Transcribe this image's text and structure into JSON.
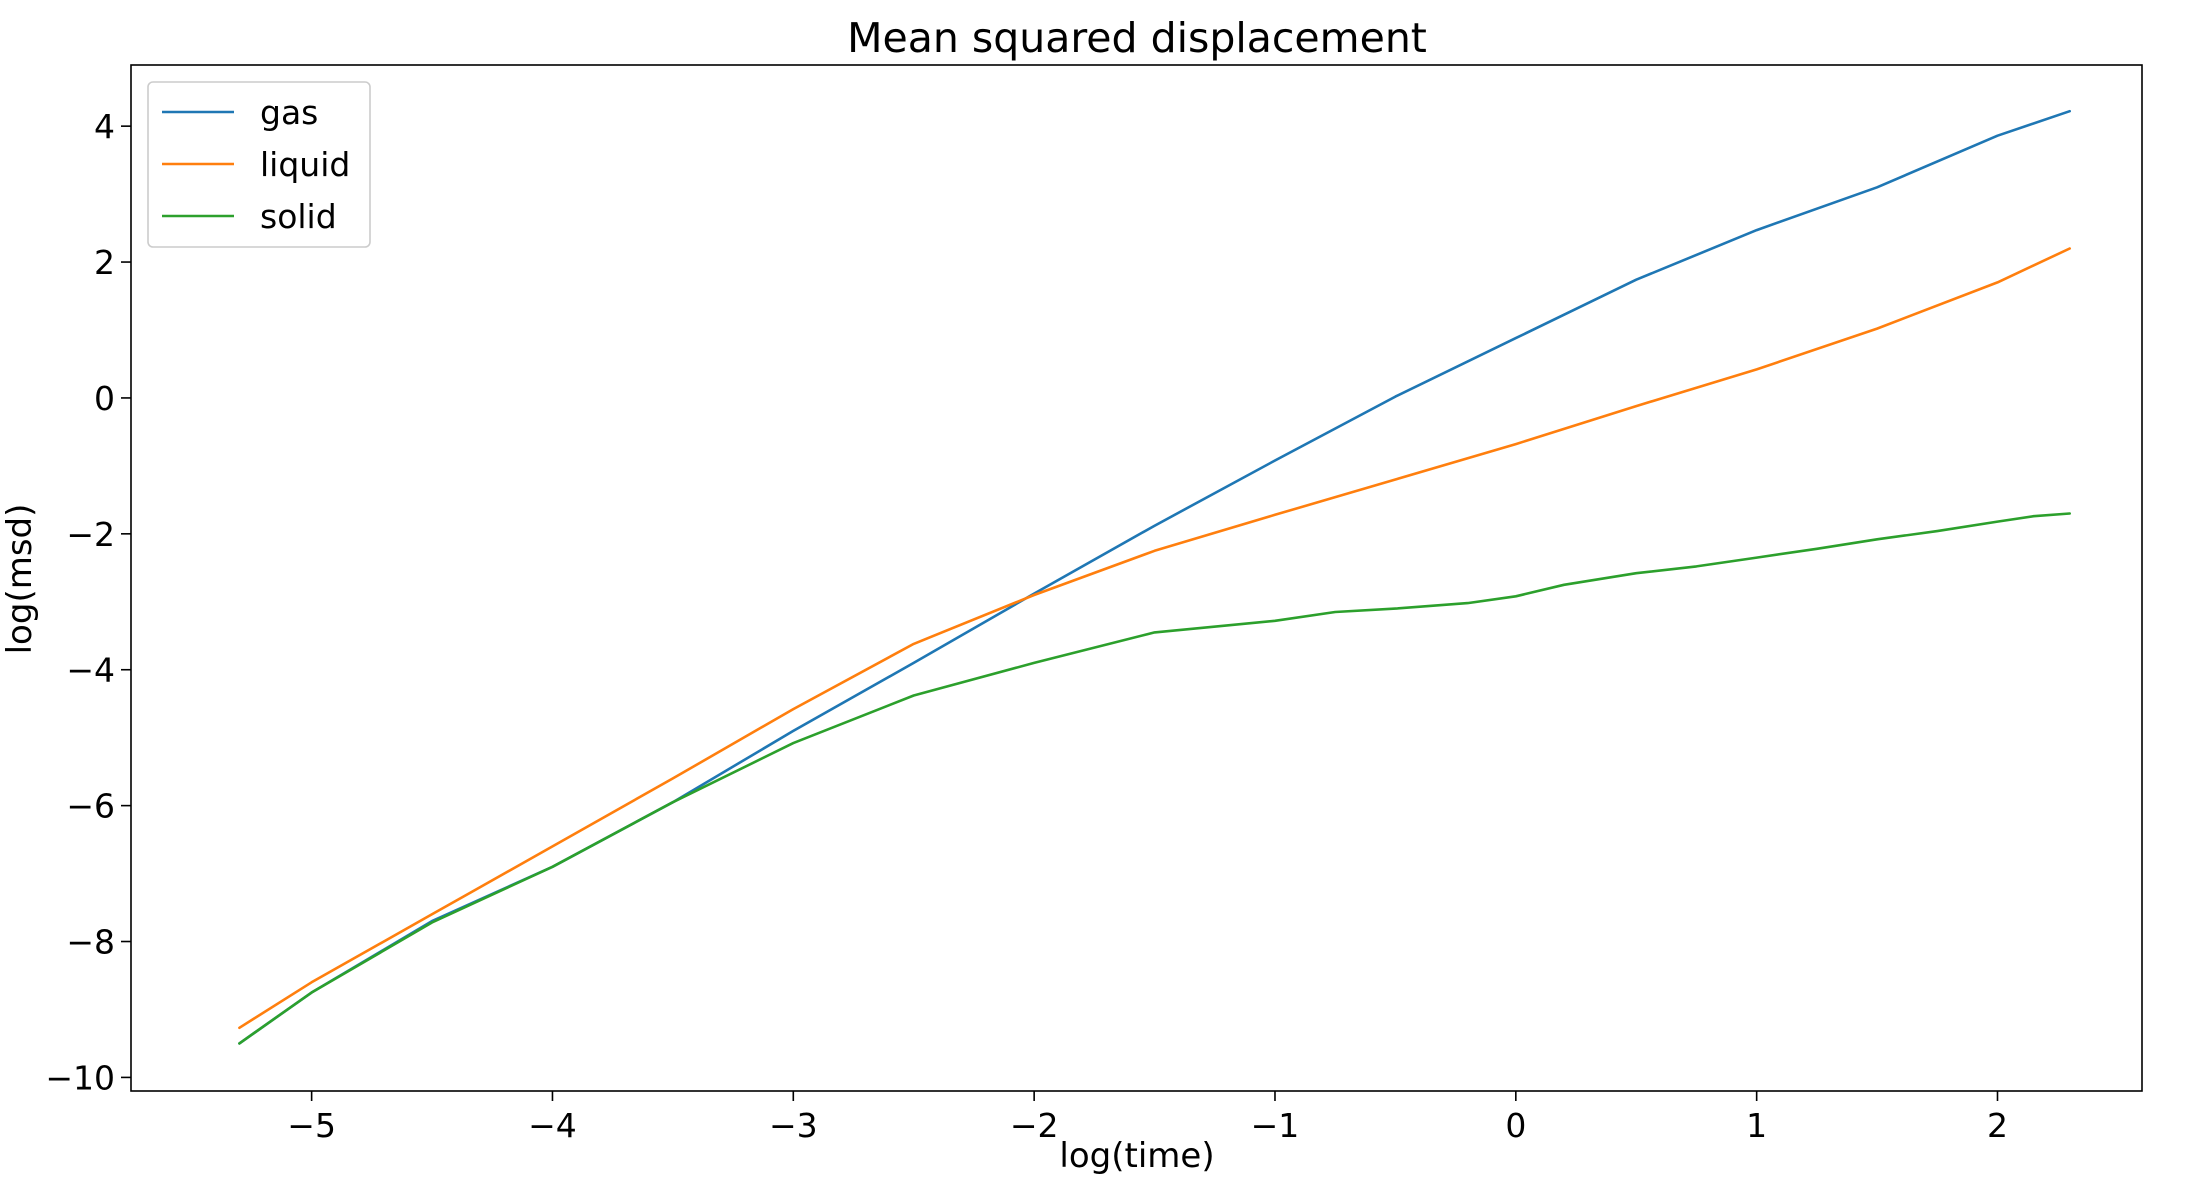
{
  "chart_data": {
    "type": "line",
    "title": "Mean squared displacement",
    "xlabel": "log(time)",
    "ylabel": "log(msd)",
    "xlim": [
      -5.75,
      2.6
    ],
    "ylim": [
      -10.2,
      4.9
    ],
    "xticks": [
      -5,
      -4,
      -3,
      -2,
      -1,
      0,
      1,
      2
    ],
    "xtick_labels": [
      "−5",
      "−4",
      "−3",
      "−2",
      "−1",
      "0",
      "1",
      "2"
    ],
    "yticks": [
      -10,
      -8,
      -6,
      -4,
      -2,
      0,
      2,
      4
    ],
    "ytick_labels": [
      "−10",
      "−8",
      "−6",
      "−4",
      "−2",
      "0",
      "2",
      "4"
    ],
    "grid": false,
    "legend_position": "upper-left",
    "series": [
      {
        "name": "gas",
        "color": "#1f77b4",
        "points": [
          [
            -5.3,
            -9.5
          ],
          [
            -5.0,
            -8.75
          ],
          [
            -4.5,
            -7.7
          ],
          [
            -4.0,
            -6.9
          ],
          [
            -3.5,
            -5.95
          ],
          [
            -3.0,
            -4.9
          ],
          [
            -2.5,
            -3.9
          ],
          [
            -2.0,
            -2.88
          ],
          [
            -1.5,
            -1.88
          ],
          [
            -1.0,
            -0.92
          ],
          [
            -0.5,
            0.02
          ],
          [
            0.0,
            0.88
          ],
          [
            0.5,
            1.74
          ],
          [
            1.0,
            2.47
          ],
          [
            1.5,
            3.1
          ],
          [
            2.0,
            3.86
          ],
          [
            2.3,
            4.22
          ]
        ]
      },
      {
        "name": "liquid",
        "color": "#ff7f0e",
        "points": [
          [
            -5.3,
            -9.27
          ],
          [
            -5.0,
            -8.6
          ],
          [
            -4.5,
            -7.6
          ],
          [
            -4.0,
            -6.6
          ],
          [
            -3.5,
            -5.6
          ],
          [
            -3.0,
            -4.58
          ],
          [
            -2.5,
            -3.62
          ],
          [
            -2.0,
            -2.9
          ],
          [
            -1.5,
            -2.25
          ],
          [
            -1.0,
            -1.72
          ],
          [
            -0.5,
            -1.2
          ],
          [
            0.0,
            -0.68
          ],
          [
            0.5,
            -0.12
          ],
          [
            1.0,
            0.42
          ],
          [
            1.5,
            1.02
          ],
          [
            2.0,
            1.7
          ],
          [
            2.3,
            2.2
          ]
        ]
      },
      {
        "name": "solid",
        "color": "#2ca02c",
        "points": [
          [
            -5.3,
            -9.5
          ],
          [
            -5.0,
            -8.75
          ],
          [
            -4.5,
            -7.72
          ],
          [
            -4.0,
            -6.9
          ],
          [
            -3.5,
            -5.95
          ],
          [
            -3.0,
            -5.08
          ],
          [
            -2.5,
            -4.38
          ],
          [
            -2.0,
            -3.9
          ],
          [
            -1.5,
            -3.45
          ],
          [
            -1.0,
            -3.28
          ],
          [
            -0.75,
            -3.15
          ],
          [
            -0.5,
            -3.1
          ],
          [
            -0.2,
            -3.02
          ],
          [
            0.0,
            -2.92
          ],
          [
            0.2,
            -2.75
          ],
          [
            0.5,
            -2.58
          ],
          [
            0.75,
            -2.48
          ],
          [
            1.0,
            -2.35
          ],
          [
            1.25,
            -2.22
          ],
          [
            1.5,
            -2.08
          ],
          [
            1.75,
            -1.96
          ],
          [
            2.0,
            -1.82
          ],
          [
            2.15,
            -1.74
          ],
          [
            2.3,
            -1.7
          ]
        ]
      }
    ]
  }
}
